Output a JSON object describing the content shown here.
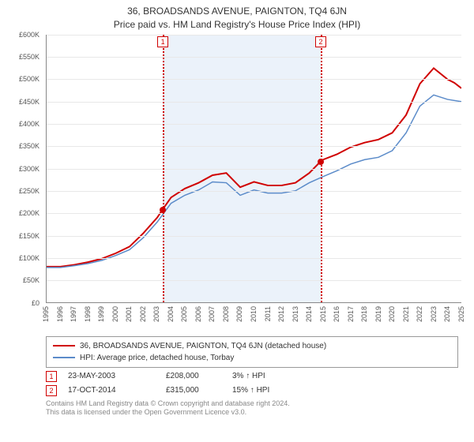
{
  "title": {
    "line1": "36, BROADSANDS AVENUE, PAIGNTON, TQ4 6JN",
    "line2": "Price paid vs. HM Land Registry's House Price Index (HPI)"
  },
  "chart": {
    "type": "line",
    "background_color": "#ffffff",
    "grid_color": "#e8e8e8",
    "axis_color": "#888888",
    "x": {
      "min": 1995,
      "max": 2025,
      "ticks": [
        1995,
        1996,
        1997,
        1998,
        1999,
        2000,
        2001,
        2002,
        2003,
        2004,
        2005,
        2006,
        2007,
        2008,
        2009,
        2010,
        2011,
        2012,
        2013,
        2014,
        2015,
        2016,
        2017,
        2018,
        2019,
        2020,
        2021,
        2022,
        2023,
        2024,
        2025
      ],
      "label_fontsize": 9
    },
    "y": {
      "min": 0,
      "max": 600000,
      "tick_step": 50000,
      "tick_prefix": "£",
      "tick_labels": [
        "£0",
        "£50K",
        "£100K",
        "£150K",
        "£200K",
        "£250K",
        "£300K",
        "£350K",
        "£400K",
        "£450K",
        "£500K",
        "£550K",
        "£600K"
      ],
      "label_fontsize": 9
    },
    "shaded_ranges": [
      {
        "x0": 2003.39,
        "x1": 2014.79,
        "color": "#dbe8f5",
        "opacity": 0.55
      }
    ],
    "event_lines": [
      {
        "x": 2003.39,
        "color": "#d00000",
        "style": "dotted",
        "label": "1",
        "label_y": -1
      },
      {
        "x": 2014.79,
        "color": "#d00000",
        "style": "dotted",
        "label": "2",
        "label_y": -1
      }
    ],
    "series": [
      {
        "name": "36, BROADSANDS AVENUE, PAIGNTON, TQ4 6JN (detached house)",
        "color": "#d00000",
        "width": 2,
        "points": [
          [
            1995,
            80000
          ],
          [
            1996,
            80000
          ],
          [
            1997,
            84000
          ],
          [
            1998,
            90000
          ],
          [
            1999,
            98000
          ],
          [
            2000,
            110000
          ],
          [
            2001,
            125000
          ],
          [
            2002,
            155000
          ],
          [
            2003,
            190000
          ],
          [
            2003.39,
            208000
          ],
          [
            2004,
            235000
          ],
          [
            2005,
            255000
          ],
          [
            2006,
            268000
          ],
          [
            2007,
            285000
          ],
          [
            2008,
            290000
          ],
          [
            2009,
            258000
          ],
          [
            2010,
            270000
          ],
          [
            2011,
            262000
          ],
          [
            2012,
            262000
          ],
          [
            2013,
            268000
          ],
          [
            2014,
            290000
          ],
          [
            2014.79,
            315000
          ],
          [
            2015,
            320000
          ],
          [
            2016,
            332000
          ],
          [
            2017,
            348000
          ],
          [
            2018,
            358000
          ],
          [
            2019,
            365000
          ],
          [
            2020,
            380000
          ],
          [
            2021,
            420000
          ],
          [
            2022,
            490000
          ],
          [
            2023,
            525000
          ],
          [
            2024,
            500000
          ],
          [
            2024.5,
            492000
          ],
          [
            2025,
            480000
          ]
        ]
      },
      {
        "name": "HPI: Average price, detached house, Torbay",
        "color": "#5b8bc9",
        "width": 1.5,
        "points": [
          [
            1995,
            78000
          ],
          [
            1996,
            78000
          ],
          [
            1997,
            82000
          ],
          [
            1998,
            87000
          ],
          [
            1999,
            94000
          ],
          [
            2000,
            105000
          ],
          [
            2001,
            118000
          ],
          [
            2002,
            145000
          ],
          [
            2003,
            180000
          ],
          [
            2004,
            222000
          ],
          [
            2005,
            240000
          ],
          [
            2006,
            252000
          ],
          [
            2007,
            270000
          ],
          [
            2008,
            268000
          ],
          [
            2009,
            240000
          ],
          [
            2010,
            252000
          ],
          [
            2011,
            245000
          ],
          [
            2012,
            245000
          ],
          [
            2013,
            250000
          ],
          [
            2014,
            268000
          ],
          [
            2015,
            282000
          ],
          [
            2016,
            295000
          ],
          [
            2017,
            310000
          ],
          [
            2018,
            320000
          ],
          [
            2019,
            325000
          ],
          [
            2020,
            340000
          ],
          [
            2021,
            380000
          ],
          [
            2022,
            440000
          ],
          [
            2023,
            465000
          ],
          [
            2024,
            455000
          ],
          [
            2025,
            450000
          ]
        ]
      }
    ],
    "sale_points": [
      {
        "x": 2003.39,
        "y": 208000,
        "color": "#d00000"
      },
      {
        "x": 2014.79,
        "y": 315000,
        "color": "#d00000"
      }
    ]
  },
  "legend": {
    "items": [
      {
        "color": "#d00000",
        "label": "36, BROADSANDS AVENUE, PAIGNTON, TQ4 6JN (detached house)"
      },
      {
        "color": "#5b8bc9",
        "label": "HPI: Average price, detached house, Torbay"
      }
    ]
  },
  "trades": [
    {
      "num": "1",
      "date": "23-MAY-2003",
      "price": "£208,000",
      "delta": "3% ↑ HPI"
    },
    {
      "num": "2",
      "date": "17-OCT-2014",
      "price": "£315,000",
      "delta": "15% ↑ HPI"
    }
  ],
  "footer": {
    "line1": "Contains HM Land Registry data © Crown copyright and database right 2024.",
    "line2": "This data is licensed under the Open Government Licence v3.0."
  }
}
